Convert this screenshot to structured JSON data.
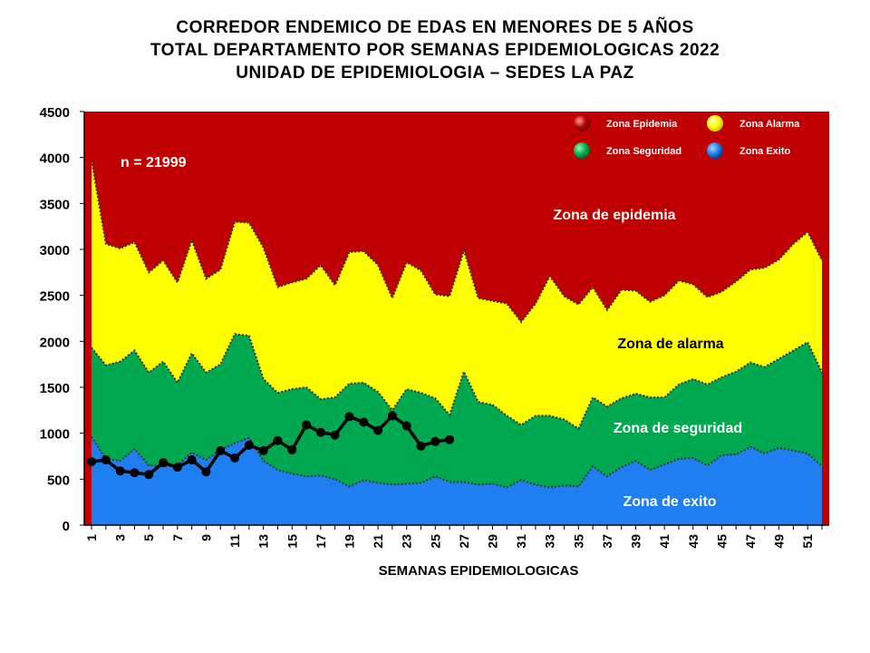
{
  "title": {
    "line1": "CORREDOR ENDEMICO DE EDAS EN MENORES DE 5 AÑOS",
    "line2": "TOTAL DEPARTAMENTO POR SEMANAS EPIDEMIOLOGICAS 2022",
    "line3": "UNIDAD DE EPIDEMIOLOGIA – SEDES LA PAZ"
  },
  "chart_data": {
    "type": "area",
    "xlabel": "SEMANAS EPIDEMIOLOGICAS",
    "ylabel": "",
    "ylim": [
      0,
      4500
    ],
    "yticks": [
      0,
      500,
      1000,
      1500,
      2000,
      2500,
      3000,
      3500,
      4000,
      4500
    ],
    "xticks": [
      1,
      3,
      5,
      7,
      9,
      11,
      13,
      15,
      17,
      19,
      21,
      23,
      25,
      27,
      29,
      31,
      33,
      35,
      37,
      39,
      41,
      43,
      45,
      47,
      49,
      51
    ],
    "x_range": [
      1,
      52
    ],
    "annotation": "n = 21999",
    "zone_labels": {
      "epidemia": "Zona de epidemia",
      "alarma": "Zona de alarma",
      "seguridad": "Zona de  seguridad",
      "exito": "Zona de exito"
    },
    "legend": {
      "placement": "top-right",
      "items": [
        {
          "label": "Zona Epidemia",
          "color": "#c00000"
        },
        {
          "label": "Zona Alarma",
          "color": "#ffff00"
        },
        {
          "label": "Zona Seguridad",
          "color": "#00b050"
        },
        {
          "label": "Zona Exito",
          "color": "#0070f0"
        }
      ]
    },
    "colors": {
      "epidemia": "#c00000",
      "alarma": "#ffff00",
      "seguridad": "#00a850",
      "exito": "#1f7ff0",
      "casos": "#000000"
    },
    "series": [
      {
        "key": "exito_upper",
        "x": [
          1,
          2,
          3,
          4,
          5,
          6,
          7,
          8,
          9,
          10,
          11,
          12,
          13,
          14,
          15,
          16,
          17,
          18,
          19,
          20,
          21,
          22,
          23,
          24,
          25,
          26,
          27,
          28,
          29,
          30,
          31,
          32,
          33,
          34,
          35,
          36,
          37,
          38,
          39,
          40,
          41,
          42,
          43,
          44,
          45,
          46,
          47,
          48,
          49,
          50,
          51,
          52
        ],
        "values": [
          960,
          720,
          700,
          830,
          650,
          640,
          650,
          790,
          710,
          820,
          890,
          950,
          700,
          600,
          560,
          530,
          540,
          500,
          420,
          490,
          460,
          440,
          450,
          460,
          530,
          470,
          470,
          440,
          450,
          410,
          490,
          440,
          410,
          430,
          420,
          640,
          530,
          630,
          700,
          600,
          660,
          720,
          730,
          650,
          760,
          770,
          850,
          780,
          840,
          810,
          780,
          640
        ]
      },
      {
        "key": "seguridad_upper",
        "x": [
          1,
          2,
          3,
          4,
          5,
          6,
          7,
          8,
          9,
          10,
          11,
          12,
          13,
          14,
          15,
          16,
          17,
          18,
          19,
          20,
          21,
          22,
          23,
          24,
          25,
          26,
          27,
          28,
          29,
          30,
          31,
          32,
          33,
          34,
          35,
          36,
          37,
          38,
          39,
          40,
          41,
          42,
          43,
          44,
          45,
          46,
          47,
          48,
          49,
          50,
          51,
          52
        ],
        "values": [
          1930,
          1740,
          1780,
          1900,
          1660,
          1780,
          1550,
          1870,
          1660,
          1750,
          2080,
          2060,
          1590,
          1440,
          1480,
          1500,
          1370,
          1390,
          1540,
          1550,
          1450,
          1250,
          1480,
          1440,
          1380,
          1200,
          1670,
          1340,
          1310,
          1190,
          1090,
          1190,
          1190,
          1150,
          1050,
          1390,
          1290,
          1380,
          1430,
          1390,
          1390,
          1530,
          1590,
          1530,
          1610,
          1670,
          1770,
          1720,
          1810,
          1900,
          1990,
          1660
        ]
      },
      {
        "key": "alarma_upper",
        "x": [
          1,
          2,
          3,
          4,
          5,
          6,
          7,
          8,
          9,
          10,
          11,
          12,
          13,
          14,
          15,
          16,
          17,
          18,
          19,
          20,
          21,
          22,
          23,
          24,
          25,
          26,
          27,
          28,
          29,
          30,
          31,
          32,
          33,
          34,
          35,
          36,
          37,
          38,
          39,
          40,
          41,
          42,
          43,
          44,
          45,
          46,
          47,
          48,
          49,
          50,
          51,
          52
        ],
        "values": [
          3970,
          3060,
          3010,
          3080,
          2750,
          2880,
          2640,
          3100,
          2680,
          2780,
          3300,
          3290,
          3020,
          2590,
          2640,
          2680,
          2830,
          2610,
          2970,
          2980,
          2830,
          2470,
          2860,
          2770,
          2510,
          2490,
          2990,
          2470,
          2440,
          2410,
          2210,
          2410,
          2710,
          2490,
          2400,
          2590,
          2340,
          2560,
          2550,
          2430,
          2500,
          2660,
          2620,
          2480,
          2540,
          2650,
          2780,
          2800,
          2890,
          3060,
          3190,
          2880
        ]
      },
      {
        "key": "casos_2022",
        "name": "",
        "x": [
          1,
          2,
          3,
          4,
          5,
          6,
          7,
          8,
          9,
          10,
          11,
          12,
          13,
          14,
          15,
          16,
          17,
          18,
          19,
          20,
          21,
          22,
          23,
          24,
          25,
          26
        ],
        "values": [
          690,
          710,
          590,
          570,
          550,
          680,
          630,
          710,
          580,
          810,
          730,
          870,
          810,
          920,
          820,
          1090,
          1010,
          980,
          1180,
          1120,
          1030,
          1190,
          1080,
          860,
          910,
          930
        ]
      }
    ]
  }
}
